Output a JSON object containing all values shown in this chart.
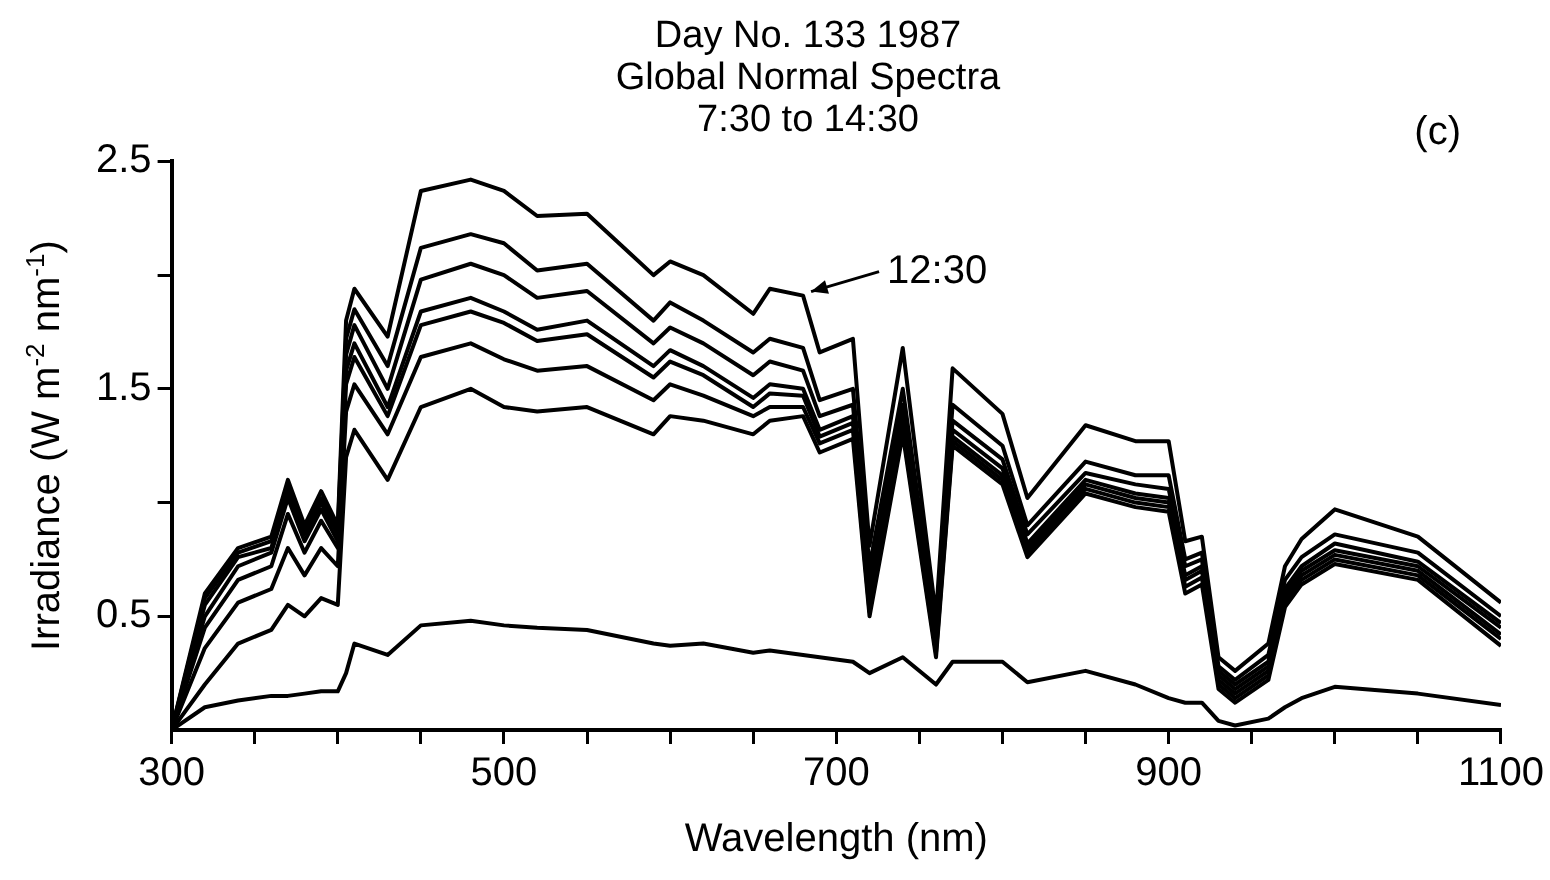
{
  "chart_data": {
    "type": "line",
    "title": "Day No. 133 1987\nGlobal Normal Spectra\n7:30 to 14:30",
    "xlabel": "Wavelength (nm)",
    "ylabel": "Irradiance (W m$^{-2}$ nm$^{-1}$)",
    "x": [
      300,
      320,
      340,
      360,
      370,
      380,
      390,
      400,
      405,
      410,
      430,
      450,
      480,
      500,
      520,
      550,
      590,
      600,
      620,
      650,
      660,
      680,
      690,
      710,
      720,
      740,
      760,
      770,
      800,
      815,
      850,
      880,
      900,
      910,
      920,
      930,
      940,
      960,
      970,
      980,
      1000,
      1050,
      1100
    ],
    "series": [
      {
        "color": "#000000",
        "values": [
          0,
          0.6,
          0.8,
          0.85,
          1.1,
          0.9,
          1.05,
          0.9,
          1.8,
          1.94,
          1.73,
          2.37,
          2.42,
          2.37,
          2.26,
          2.27,
          2.0,
          2.06,
          2.0,
          1.83,
          1.94,
          1.91,
          1.66,
          1.72,
          0.81,
          1.68,
          0.5,
          1.59,
          1.39,
          1.02,
          1.34,
          1.27,
          1.27,
          0.83,
          0.85,
          0.32,
          0.26,
          0.38,
          0.72,
          0.84,
          0.97,
          0.85,
          0.56
        ]
      },
      {
        "color": "#000000",
        "values": [
          0,
          0.58,
          0.78,
          0.83,
          1.08,
          0.88,
          1.02,
          0.88,
          1.72,
          1.85,
          1.6,
          2.12,
          2.18,
          2.14,
          2.02,
          2.05,
          1.8,
          1.88,
          1.8,
          1.66,
          1.72,
          1.68,
          1.45,
          1.5,
          0.72,
          1.5,
          0.45,
          1.43,
          1.25,
          0.9,
          1.18,
          1.12,
          1.12,
          0.75,
          0.78,
          0.28,
          0.22,
          0.33,
          0.66,
          0.76,
          0.86,
          0.78,
          0.5
        ]
      },
      {
        "color": "#000000",
        "values": [
          0,
          0.55,
          0.76,
          0.8,
          1.05,
          0.86,
          1.0,
          0.86,
          1.65,
          1.78,
          1.5,
          1.98,
          2.05,
          2.0,
          1.9,
          1.93,
          1.7,
          1.77,
          1.7,
          1.56,
          1.62,
          1.58,
          1.38,
          1.43,
          0.66,
          1.43,
          0.42,
          1.36,
          1.19,
          0.86,
          1.13,
          1.08,
          1.06,
          0.72,
          0.75,
          0.26,
          0.2,
          0.3,
          0.62,
          0.72,
          0.82,
          0.74,
          0.47
        ]
      },
      {
        "color": "#000000",
        "values": [
          0,
          0.5,
          0.72,
          0.78,
          1.02,
          0.83,
          0.97,
          0.83,
          1.58,
          1.7,
          1.42,
          1.84,
          1.9,
          1.84,
          1.76,
          1.8,
          1.6,
          1.67,
          1.6,
          1.46,
          1.52,
          1.5,
          1.32,
          1.38,
          0.6,
          1.38,
          0.4,
          1.32,
          1.15,
          0.82,
          1.1,
          1.04,
          1.02,
          0.68,
          0.72,
          0.24,
          0.18,
          0.28,
          0.6,
          0.7,
          0.79,
          0.72,
          0.45
        ]
      },
      {
        "color": "#000000",
        "values": [
          0,
          0.45,
          0.66,
          0.72,
          0.95,
          0.78,
          0.92,
          0.8,
          1.52,
          1.64,
          1.38,
          1.78,
          1.84,
          1.79,
          1.71,
          1.74,
          1.55,
          1.62,
          1.56,
          1.42,
          1.48,
          1.47,
          1.29,
          1.35,
          0.56,
          1.35,
          0.37,
          1.29,
          1.12,
          0.8,
          1.08,
          1.02,
          1.0,
          0.66,
          0.7,
          0.22,
          0.16,
          0.26,
          0.58,
          0.68,
          0.77,
          0.7,
          0.42
        ]
      },
      {
        "color": "#000000",
        "values": [
          0,
          0.36,
          0.56,
          0.62,
          0.8,
          0.68,
          0.8,
          0.72,
          1.4,
          1.52,
          1.3,
          1.64,
          1.7,
          1.63,
          1.58,
          1.6,
          1.45,
          1.52,
          1.47,
          1.38,
          1.42,
          1.42,
          1.26,
          1.32,
          0.52,
          1.32,
          0.34,
          1.27,
          1.1,
          0.78,
          1.06,
          1.0,
          0.98,
          0.63,
          0.67,
          0.2,
          0.14,
          0.24,
          0.56,
          0.66,
          0.75,
          0.68,
          0.4
        ]
      },
      {
        "color": "#000000",
        "values": [
          0,
          0.2,
          0.38,
          0.44,
          0.55,
          0.5,
          0.58,
          0.55,
          1.2,
          1.32,
          1.1,
          1.42,
          1.5,
          1.42,
          1.4,
          1.42,
          1.3,
          1.38,
          1.36,
          1.3,
          1.36,
          1.38,
          1.22,
          1.28,
          0.5,
          1.3,
          0.32,
          1.25,
          1.08,
          0.76,
          1.04,
          0.98,
          0.96,
          0.6,
          0.64,
          0.18,
          0.12,
          0.22,
          0.54,
          0.64,
          0.73,
          0.66,
          0.37
        ]
      },
      {
        "color": "#000000",
        "values": [
          0,
          0.1,
          0.13,
          0.15,
          0.15,
          0.16,
          0.17,
          0.17,
          0.25,
          0.38,
          0.33,
          0.46,
          0.48,
          0.46,
          0.45,
          0.44,
          0.38,
          0.37,
          0.38,
          0.34,
          0.35,
          0.33,
          0.32,
          0.3,
          0.25,
          0.32,
          0.2,
          0.3,
          0.3,
          0.21,
          0.26,
          0.2,
          0.14,
          0.12,
          0.12,
          0.04,
          0.02,
          0.05,
          0.1,
          0.14,
          0.19,
          0.16,
          0.11
        ]
      }
    ],
    "xlim": [
      300,
      1100
    ],
    "xticks": [
      300,
      {
        "value": 350,
        "label": null
      },
      {
        "value": 400,
        "label": null
      },
      {
        "value": 450,
        "label": null
      },
      500,
      {
        "value": 550,
        "label": null
      },
      {
        "value": 600,
        "label": null
      },
      {
        "value": 650,
        "label": null
      },
      700,
      {
        "value": 750,
        "label": null
      },
      {
        "value": 800,
        "label": null
      },
      {
        "value": 850,
        "label": null
      },
      900,
      {
        "value": 950,
        "label": null
      },
      {
        "value": 1000,
        "label": null
      },
      {
        "value": 1050,
        "label": null
      },
      1100
    ],
    "ylim": [
      0,
      2.5
    ],
    "yticks": [
      0.5,
      {
        "value": 1,
        "label": null
      },
      1.5,
      {
        "value": 2,
        "label": null
      },
      2.5
    ],
    "annotations": [
      {
        "text": "12:30",
        "x": 680,
        "y": 1.91
      },
      "(c)"
    ],
    "grid": false,
    "legend": false,
    "marker": "none",
    "line_style": "solid"
  }
}
